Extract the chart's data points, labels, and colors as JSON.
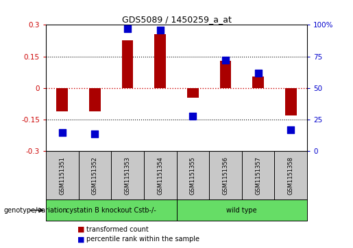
{
  "title": "GDS5089 / 1450259_a_at",
  "samples": [
    "GSM1151351",
    "GSM1151352",
    "GSM1151353",
    "GSM1151354",
    "GSM1151355",
    "GSM1151356",
    "GSM1151357",
    "GSM1151358"
  ],
  "transformed_count": [
    -0.11,
    -0.11,
    0.225,
    0.255,
    -0.045,
    0.13,
    0.055,
    -0.13
  ],
  "percentile_rank": [
    15,
    14,
    97,
    96,
    28,
    72,
    62,
    17
  ],
  "ylim_left": [
    -0.3,
    0.3
  ],
  "ylim_right": [
    0,
    100
  ],
  "yticks_left": [
    -0.3,
    -0.15,
    0,
    0.15,
    0.3
  ],
  "yticks_right": [
    0,
    25,
    50,
    75,
    100
  ],
  "ytick_labels_left": [
    "-0.3",
    "-0.15",
    "0",
    "0.15",
    "0.3"
  ],
  "ytick_labels_right": [
    "0",
    "25",
    "50",
    "75",
    "100%"
  ],
  "zero_line_color": "#cc0000",
  "bar_color": "#aa0000",
  "dot_color": "#0000cc",
  "bar_width": 0.35,
  "dot_size": 45,
  "title_fontsize": 9,
  "legend_items": [
    {
      "label": "transformed count",
      "color": "#aa0000"
    },
    {
      "label": "percentile rank within the sample",
      "color": "#0000cc"
    }
  ],
  "genotype_label": "genotype/variation",
  "group1_label": "cystatin B knockout Cstb-/-",
  "group2_label": "wild type",
  "group_color": "#66dd66",
  "background_plot": "#ffffff",
  "background_label": "#c8c8c8"
}
